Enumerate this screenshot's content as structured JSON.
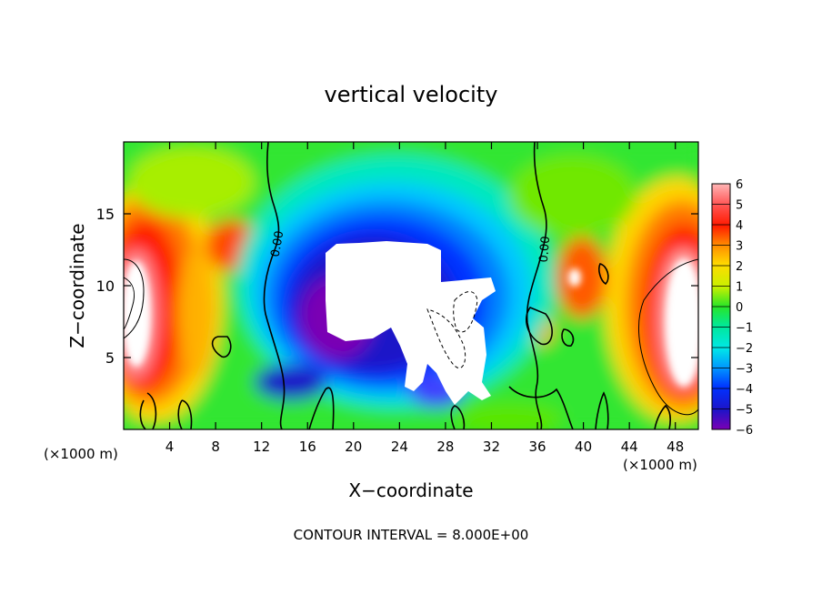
{
  "chart_data": {
    "type": "heatmap",
    "title": "vertical velocity",
    "xlabel": "X−coordinate",
    "ylabel": "Z−coordinate",
    "x_unit_left": "(×1000 m)",
    "x_unit_right": "(×1000 m)",
    "footer": "CONTOUR INTERVAL = 8.000E+00",
    "xlim": [
      0,
      50
    ],
    "ylim": [
      0,
      20
    ],
    "xticks": [
      4,
      8,
      12,
      16,
      20,
      24,
      28,
      32,
      36,
      40,
      44,
      48
    ],
    "xtick_labels": [
      "4",
      "8",
      "12",
      "16",
      "20",
      "24",
      "28",
      "32",
      "36",
      "40",
      "44",
      "48"
    ],
    "yticks": [
      5,
      10,
      15
    ],
    "ytick_labels": [
      "5",
      "10",
      "15"
    ],
    "colorbar": {
      "min": -6,
      "max": 6,
      "ticks": [
        6,
        5,
        4,
        3,
        2,
        1,
        0,
        -1,
        -2,
        -3,
        -4,
        -5,
        -6
      ],
      "tick_labels": [
        "6",
        "5",
        "4",
        "3",
        "2",
        "1",
        "0",
        "−1",
        "−2",
        "−3",
        "−4",
        "−5",
        "−6"
      ]
    },
    "contour_labels": [
      {
        "text": "0.00",
        "x": 13.3,
        "z": 13.5
      },
      {
        "text": "0.00",
        "x": 36.5,
        "z": 12.5
      }
    ],
    "features": [
      {
        "name": "updraft-core-left",
        "x": 2.5,
        "z": 10,
        "value": 6
      },
      {
        "name": "downdraft-core-center",
        "x": 22,
        "z": 9,
        "value": -6
      },
      {
        "name": "updraft-core-right",
        "x": 48,
        "z": 9,
        "value": 6
      }
    ]
  }
}
